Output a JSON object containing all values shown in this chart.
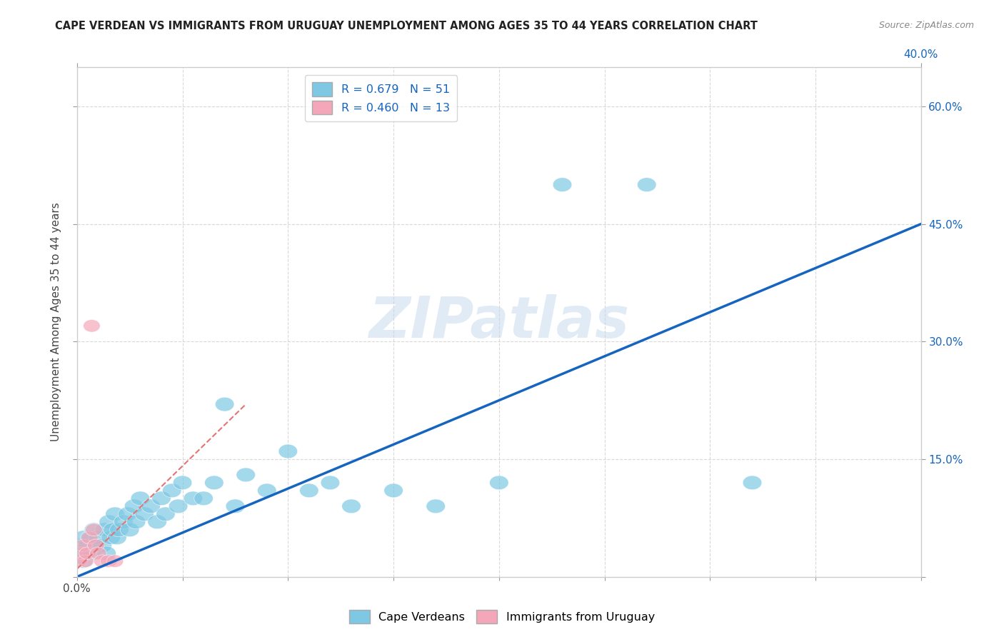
{
  "title": "CAPE VERDEAN VS IMMIGRANTS FROM URUGUAY UNEMPLOYMENT AMONG AGES 35 TO 44 YEARS CORRELATION CHART",
  "source": "Source: ZipAtlas.com",
  "ylabel": "Unemployment Among Ages 35 to 44 years",
  "xlim": [
    0.0,
    0.4
  ],
  "ylim": [
    0.0,
    0.65
  ],
  "x_ticks": [
    0.0,
    0.05,
    0.1,
    0.15,
    0.2,
    0.25,
    0.3,
    0.35,
    0.4
  ],
  "y_ticks": [
    0.0,
    0.15,
    0.3,
    0.45,
    0.6
  ],
  "blue_R": "0.679",
  "blue_N": "51",
  "pink_R": "0.460",
  "pink_N": "13",
  "blue_color": "#7ec8e3",
  "pink_color": "#f4a7b9",
  "trendline_blue": "#1565c0",
  "trendline_pink": "#e57373",
  "blue_x": [
    0.001,
    0.002,
    0.003,
    0.003,
    0.004,
    0.005,
    0.006,
    0.007,
    0.008,
    0.009,
    0.01,
    0.012,
    0.013,
    0.014,
    0.015,
    0.016,
    0.017,
    0.018,
    0.019,
    0.02,
    0.022,
    0.024,
    0.025,
    0.027,
    0.028,
    0.03,
    0.032,
    0.035,
    0.038,
    0.04,
    0.042,
    0.045,
    0.048,
    0.05,
    0.055,
    0.06,
    0.065,
    0.07,
    0.075,
    0.08,
    0.09,
    0.1,
    0.11,
    0.12,
    0.13,
    0.15,
    0.17,
    0.2,
    0.23,
    0.27,
    0.32
  ],
  "blue_y": [
    0.03,
    0.04,
    0.02,
    0.05,
    0.03,
    0.04,
    0.05,
    0.03,
    0.06,
    0.04,
    0.05,
    0.04,
    0.06,
    0.03,
    0.07,
    0.05,
    0.06,
    0.08,
    0.05,
    0.06,
    0.07,
    0.08,
    0.06,
    0.09,
    0.07,
    0.1,
    0.08,
    0.09,
    0.07,
    0.1,
    0.08,
    0.11,
    0.09,
    0.12,
    0.1,
    0.1,
    0.12,
    0.22,
    0.09,
    0.13,
    0.11,
    0.16,
    0.11,
    0.12,
    0.09,
    0.11,
    0.09,
    0.12,
    0.5,
    0.5,
    0.12
  ],
  "pink_x": [
    0.001,
    0.002,
    0.003,
    0.004,
    0.005,
    0.006,
    0.007,
    0.008,
    0.009,
    0.01,
    0.012,
    0.015,
    0.018
  ],
  "pink_y": [
    0.02,
    0.03,
    0.04,
    0.02,
    0.03,
    0.05,
    0.32,
    0.06,
    0.04,
    0.03,
    0.02,
    0.02,
    0.02
  ],
  "blue_trend_x": [
    0.0,
    0.4
  ],
  "blue_trend_y": [
    0.0,
    0.45
  ],
  "pink_trend_x": [
    0.0,
    0.08
  ],
  "pink_trend_y": [
    0.01,
    0.22
  ],
  "background_color": "#ffffff",
  "grid_color": "#d0d0d0",
  "watermark_text": "ZIPatlas"
}
